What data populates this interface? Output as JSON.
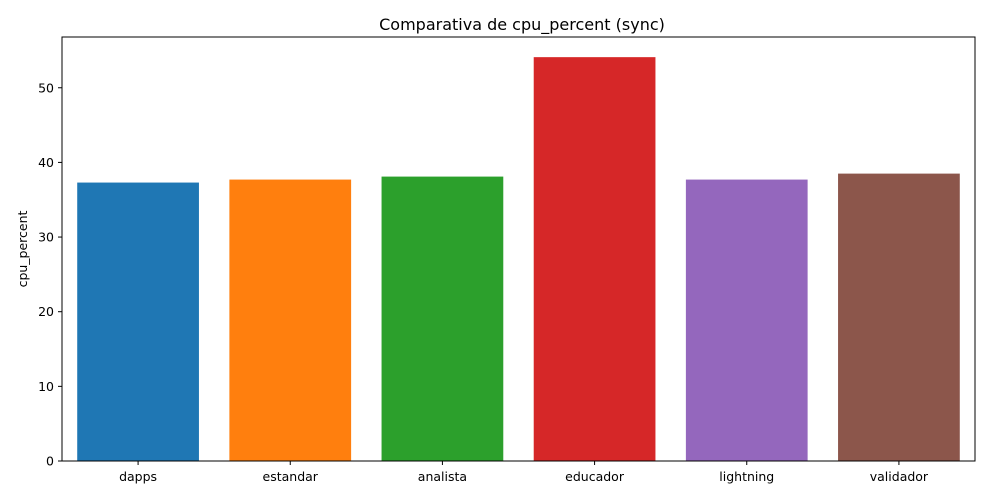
{
  "chart_data": {
    "type": "bar",
    "title": "Comparativa de cpu_percent (sync)",
    "xlabel": "",
    "ylabel": "cpu_percent",
    "categories": [
      "dapps",
      "estandar",
      "analista",
      "educador",
      "lightning",
      "validador"
    ],
    "values": [
      37.3,
      37.7,
      38.1,
      54.1,
      37.7,
      38.5
    ],
    "colors": [
      "#1f77b4",
      "#ff7f0e",
      "#2ca02c",
      "#d62728",
      "#9467bd",
      "#8c564b"
    ],
    "ylim": [
      0,
      56.8
    ],
    "yticks": [
      0,
      10,
      20,
      30,
      40,
      50
    ],
    "grid": false,
    "legend": "none"
  }
}
